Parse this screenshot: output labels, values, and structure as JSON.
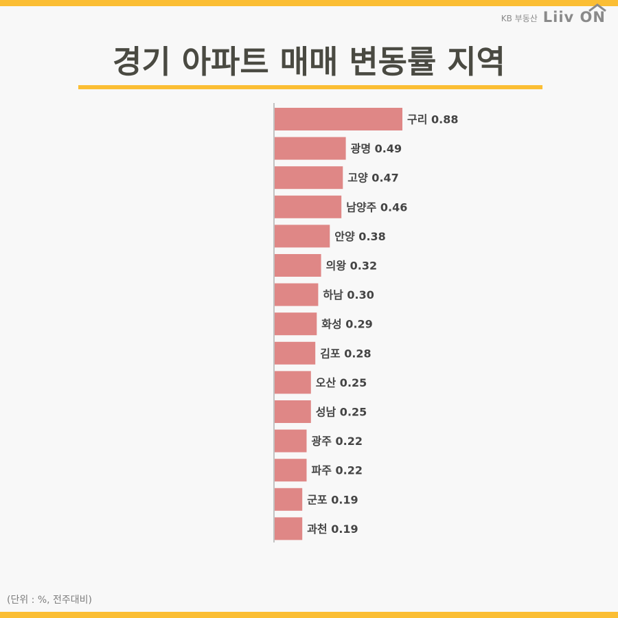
{
  "brand": {
    "kb_text": "KB 부동산",
    "logo_text": "Liiv ON"
  },
  "title": "경기 아파트 매매 변동률 지역",
  "note": "(단위 : %, 전주대비)",
  "colors": {
    "bar": "#df8786",
    "accent": "#fbbe34",
    "axis": "#8c8c8c",
    "label": "#444444"
  },
  "chart_data": {
    "type": "bar",
    "orientation": "horizontal",
    "categories": [
      "구리",
      "광명",
      "고양",
      "남양주",
      "안양",
      "의왕",
      "하남",
      "화성",
      "김포",
      "오산",
      "성남",
      "광주",
      "파주",
      "군포",
      "과천"
    ],
    "values": [
      0.88,
      0.49,
      0.47,
      0.46,
      0.38,
      0.32,
      0.3,
      0.29,
      0.28,
      0.25,
      0.25,
      0.22,
      0.22,
      0.19,
      0.19
    ],
    "value_labels": [
      "0.88",
      "0.49",
      "0.47",
      "0.46",
      "0.38",
      "0.32",
      "0.30",
      "0.29",
      "0.28",
      "0.25",
      "0.25",
      "0.22",
      "0.22",
      "0.19",
      "0.19"
    ],
    "title": "경기 아파트 매매 변동률 지역",
    "xlabel": "",
    "ylabel": "",
    "xlim": [
      0,
      0.88
    ],
    "grid": false,
    "legend": "none"
  }
}
